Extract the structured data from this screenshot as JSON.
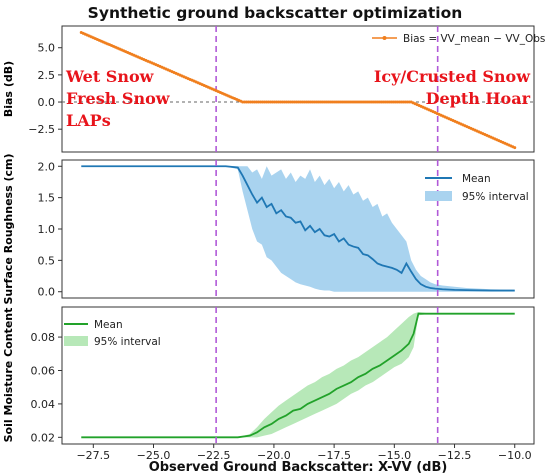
{
  "title": "Synthetic ground backscatter optimization",
  "xlabel": "Observed Ground Backscatter: X-VV (dB)",
  "x_ticks": [
    "−27.5",
    "−25.0",
    "−22.5",
    "−20.0",
    "−17.5",
    "−15.0",
    "−12.5",
    "−10.0"
  ],
  "colors": {
    "bias": "#f07f1e",
    "mean_blue": "#1f77b4",
    "band_blue": "#a9d3ef",
    "mean_green": "#22a22a",
    "band_green": "#b7e8b8",
    "vline": "#b05ad8",
    "annot": "#e8141b"
  },
  "chart_data": [
    {
      "type": "line",
      "xlim": [
        -28.8,
        -9.2
      ],
      "ylim": [
        -4.6,
        7.0
      ],
      "ylabel": "Bias (dB)",
      "y_ticks": [
        "5.0",
        "2.5",
        "0.0",
        "−2.5"
      ],
      "series": [
        {
          "name": "Bias = VV_mean − VV_Obs",
          "x": [
            -28.0,
            -21.3,
            -14.3,
            -10.0
          ],
          "y": [
            6.4,
            0.0,
            0.0,
            -4.2
          ]
        }
      ],
      "reference_line_y": 0.0,
      "vertical_lines_x": [
        -22.4,
        -13.2
      ],
      "annotations_left": [
        "Wet Snow",
        "Fresh Snow",
        "LAPs"
      ],
      "annotations_right": [
        "Icy/Crusted Snow",
        "Depth Hoar"
      ],
      "legend": "top-right"
    },
    {
      "type": "area",
      "xlim": [
        -28.8,
        -9.2
      ],
      "ylim": [
        -0.1,
        2.1
      ],
      "ylabel": "Surface Roughness (cm)",
      "y_ticks": [
        "2.0",
        "1.5",
        "1.0",
        "0.5",
        "0.0"
      ],
      "legend_mean": "Mean",
      "legend_band": "95% interval",
      "legend": "top-right",
      "mean": {
        "x": [
          -28.0,
          -22.0,
          -21.5,
          -21.3,
          -21.1,
          -20.9,
          -20.7,
          -20.5,
          -20.3,
          -20.1,
          -19.9,
          -19.7,
          -19.5,
          -19.3,
          -19.1,
          -18.9,
          -18.7,
          -18.5,
          -18.3,
          -18.1,
          -17.9,
          -17.7,
          -17.5,
          -17.3,
          -17.1,
          -16.9,
          -16.7,
          -16.5,
          -16.3,
          -16.1,
          -15.9,
          -15.7,
          -15.5,
          -15.3,
          -15.1,
          -14.9,
          -14.7,
          -14.5,
          -14.3,
          -14.1,
          -13.9,
          -13.7,
          -13.5,
          -13.3,
          -13.0,
          -12.5,
          -12.0,
          -11.0,
          -10.0
        ],
        "y": [
          2.0,
          2.0,
          1.98,
          1.85,
          1.7,
          1.55,
          1.42,
          1.5,
          1.35,
          1.4,
          1.25,
          1.3,
          1.2,
          1.18,
          1.1,
          1.12,
          0.98,
          1.05,
          0.95,
          1.0,
          0.9,
          0.88,
          0.92,
          0.8,
          0.85,
          0.75,
          0.72,
          0.7,
          0.6,
          0.58,
          0.52,
          0.45,
          0.42,
          0.4,
          0.38,
          0.35,
          0.3,
          0.45,
          0.32,
          0.2,
          0.12,
          0.08,
          0.06,
          0.05,
          0.04,
          0.03,
          0.025,
          0.02,
          0.02
        ],
        "lower": [
          2.0,
          2.0,
          1.95,
          1.6,
          1.3,
          1.0,
          0.8,
          0.75,
          0.55,
          0.5,
          0.4,
          0.3,
          0.25,
          0.2,
          0.15,
          0.12,
          0.1,
          0.08,
          0.05,
          0.03,
          0.02,
          0.02,
          0.0,
          0.0,
          0.0,
          0.0,
          0.0,
          0.0,
          0.0,
          0.0,
          0.0,
          0.0,
          0.0,
          0.0,
          0.0,
          0.0,
          0.0,
          0.0,
          0.0,
          0.0,
          0.0,
          0.0,
          0.0,
          0.0,
          0.0,
          0.0,
          0.0,
          0.0,
          0.0
        ],
        "upper": [
          2.0,
          2.0,
          2.0,
          2.0,
          2.0,
          1.9,
          1.95,
          1.8,
          2.0,
          1.85,
          1.9,
          1.95,
          1.8,
          1.9,
          1.75,
          1.85,
          1.8,
          1.95,
          1.75,
          1.85,
          1.7,
          1.8,
          1.65,
          1.75,
          1.6,
          1.7,
          1.55,
          1.6,
          1.45,
          1.5,
          1.35,
          1.4,
          1.2,
          1.25,
          1.1,
          1.0,
          0.9,
          0.8,
          0.5,
          0.35,
          0.25,
          0.2,
          0.15,
          0.12,
          0.1,
          0.08,
          0.06,
          0.04,
          0.03
        ]
      },
      "vertical_lines_x": [
        -22.4,
        -13.2
      ]
    },
    {
      "type": "area",
      "xlim": [
        -28.8,
        -9.2
      ],
      "ylim": [
        0.016,
        0.098
      ],
      "ylabel": "Soil Moisture Content",
      "y_ticks": [
        "0.08",
        "0.06",
        "0.04",
        "0.02"
      ],
      "legend_mean": "Mean",
      "legend_band": "95% interval",
      "legend": "top-left",
      "mean": {
        "x": [
          -28.0,
          -21.5,
          -21.0,
          -20.7,
          -20.4,
          -20.1,
          -19.8,
          -19.5,
          -19.2,
          -18.9,
          -18.6,
          -18.3,
          -18.0,
          -17.7,
          -17.4,
          -17.1,
          -16.8,
          -16.5,
          -16.2,
          -15.9,
          -15.6,
          -15.3,
          -15.0,
          -14.7,
          -14.4,
          -14.2,
          -14.0,
          -13.5,
          -12.0,
          -10.0
        ],
        "y": [
          0.02,
          0.02,
          0.021,
          0.023,
          0.026,
          0.028,
          0.031,
          0.033,
          0.036,
          0.037,
          0.04,
          0.042,
          0.044,
          0.046,
          0.049,
          0.051,
          0.053,
          0.056,
          0.058,
          0.061,
          0.063,
          0.066,
          0.069,
          0.072,
          0.076,
          0.082,
          0.094,
          0.094,
          0.094,
          0.094
        ],
        "lower": [
          0.02,
          0.02,
          0.02,
          0.02,
          0.021,
          0.022,
          0.024,
          0.026,
          0.028,
          0.03,
          0.032,
          0.034,
          0.036,
          0.038,
          0.04,
          0.043,
          0.046,
          0.048,
          0.051,
          0.053,
          0.056,
          0.059,
          0.062,
          0.064,
          0.068,
          0.074,
          0.093,
          0.094,
          0.094,
          0.094
        ],
        "upper": [
          0.02,
          0.02,
          0.022,
          0.026,
          0.031,
          0.035,
          0.039,
          0.042,
          0.045,
          0.048,
          0.051,
          0.053,
          0.056,
          0.058,
          0.061,
          0.063,
          0.066,
          0.068,
          0.071,
          0.074,
          0.077,
          0.08,
          0.084,
          0.088,
          0.092,
          0.094,
          0.095,
          0.094,
          0.094,
          0.094
        ]
      },
      "vertical_lines_x": [
        -22.4,
        -13.2
      ]
    }
  ]
}
